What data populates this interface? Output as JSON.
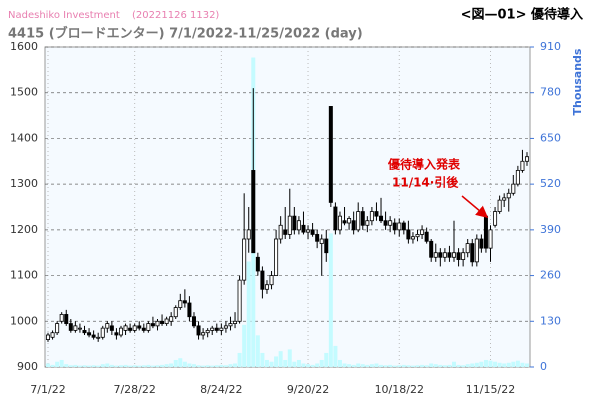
{
  "chart_data": {
    "type": "candlestick",
    "title": "Nadeshiko Investment",
    "timestamp": "(20221126 1132)",
    "figure_label": "<図—01> 優待導入",
    "subtitle": "4415 (ブロードエンター) 7/1/2022-11/25/2022 (day)",
    "y2label": "Thousands",
    "annotation": [
      "優待導入発表",
      "11/14·引後"
    ],
    "categories": [
      "7/1/22",
      null,
      null,
      null,
      null,
      null,
      null,
      null,
      null,
      null,
      null,
      null,
      null,
      null,
      null,
      null,
      null,
      null,
      null,
      "7/28/22",
      null,
      null,
      null,
      null,
      null,
      null,
      null,
      null,
      null,
      null,
      null,
      null,
      null,
      null,
      null,
      null,
      null,
      null,
      "8/24/22",
      null,
      null,
      null,
      null,
      null,
      null,
      null,
      null,
      null,
      null,
      null,
      null,
      null,
      null,
      null,
      null,
      null,
      null,
      "9/20/22",
      null,
      null,
      null,
      null,
      null,
      null,
      null,
      null,
      null,
      null,
      null,
      null,
      null,
      null,
      null,
      null,
      null,
      null,
      null,
      "10/18/22",
      null,
      null,
      null,
      null,
      null,
      null,
      null,
      null,
      null,
      null,
      null,
      null,
      null,
      null,
      null,
      null,
      null,
      null,
      null,
      "11/15/22",
      null,
      null,
      null,
      null,
      null,
      null,
      null,
      null
    ],
    "open": [
      960,
      965,
      975,
      1000,
      1015,
      995,
      980,
      985,
      980,
      975,
      970,
      965,
      965,
      985,
      990,
      975,
      970,
      980,
      985,
      980,
      990,
      985,
      980,
      995,
      990,
      1000,
      995,
      1000,
      1010,
      1030,
      1045,
      1040,
      1010,
      990,
      970,
      975,
      980,
      985,
      980,
      985,
      990,
      995,
      1000,
      1090,
      1180,
      1330,
      1140,
      1110,
      1070,
      1080,
      1100,
      1180,
      1200,
      1190,
      1230,
      1200,
      1210,
      1195,
      1200,
      1190,
      1170,
      1180,
      1470,
      1250,
      1200,
      1220,
      1215,
      1220,
      1200,
      1240,
      1210,
      1220,
      1240,
      1230,
      1220,
      1210,
      1215,
      1200,
      1215,
      1200,
      1180,
      1185,
      1190,
      1195,
      1175,
      1140,
      1150,
      1140,
      1150,
      1140,
      1150,
      1135,
      1150,
      1170,
      1130,
      1180,
      1230,
      1160,
      1210,
      1240,
      1265,
      1270,
      1280,
      1300,
      1330,
      1350
    ],
    "high": [
      975,
      980,
      1000,
      1020,
      1025,
      1005,
      1000,
      995,
      990,
      985,
      980,
      975,
      990,
      1000,
      1000,
      985,
      990,
      995,
      995,
      995,
      1000,
      995,
      1000,
      1010,
      1005,
      1015,
      1010,
      1020,
      1035,
      1060,
      1070,
      1055,
      1020,
      1000,
      985,
      985,
      990,
      995,
      995,
      1000,
      1010,
      1020,
      1100,
      1280,
      1250,
      1510,
      1150,
      1120,
      1090,
      1110,
      1200,
      1230,
      1250,
      1290,
      1250,
      1230,
      1240,
      1210,
      1215,
      1200,
      1190,
      1200,
      1470,
      1260,
      1240,
      1250,
      1230,
      1240,
      1260,
      1250,
      1230,
      1250,
      1260,
      1270,
      1240,
      1230,
      1225,
      1225,
      1220,
      1220,
      1195,
      1200,
      1210,
      1205,
      1180,
      1170,
      1160,
      1160,
      1165,
      1220,
      1160,
      1160,
      1180,
      1180,
      1190,
      1190,
      1230,
      1210,
      1250,
      1275,
      1280,
      1290,
      1320,
      1340,
      1375,
      1370
    ],
    "low": [
      955,
      960,
      970,
      995,
      990,
      975,
      975,
      975,
      970,
      965,
      960,
      955,
      960,
      975,
      970,
      960,
      965,
      970,
      975,
      975,
      980,
      975,
      975,
      985,
      980,
      990,
      990,
      990,
      1005,
      1025,
      1030,
      1000,
      985,
      960,
      960,
      965,
      970,
      975,
      970,
      975,
      980,
      985,
      995,
      1080,
      1150,
      1150,
      1100,
      1050,
      1060,
      1070,
      1100,
      1170,
      1180,
      1180,
      1190,
      1190,
      1190,
      1180,
      1185,
      1160,
      1100,
      1130,
      1250,
      1190,
      1190,
      1210,
      1200,
      1190,
      1195,
      1200,
      1195,
      1210,
      1220,
      1215,
      1200,
      1195,
      1190,
      1185,
      1190,
      1170,
      1170,
      1175,
      1180,
      1170,
      1130,
      1130,
      1120,
      1130,
      1130,
      1130,
      1120,
      1120,
      1140,
      1120,
      1120,
      1150,
      1150,
      1130,
      1205,
      1235,
      1250,
      1240,
      1275,
      1295,
      1325,
      1340
    ],
    "close": [
      970,
      975,
      995,
      1015,
      995,
      980,
      990,
      985,
      975,
      970,
      965,
      965,
      985,
      995,
      980,
      970,
      985,
      990,
      980,
      990,
      985,
      980,
      995,
      990,
      1000,
      995,
      1005,
      1010,
      1030,
      1045,
      1040,
      1010,
      990,
      970,
      975,
      980,
      985,
      980,
      985,
      990,
      995,
      1000,
      1090,
      1180,
      1200,
      1150,
      1110,
      1070,
      1080,
      1100,
      1180,
      1210,
      1190,
      1230,
      1200,
      1220,
      1195,
      1200,
      1190,
      1175,
      1180,
      1150,
      1260,
      1200,
      1230,
      1215,
      1225,
      1200,
      1240,
      1210,
      1220,
      1240,
      1230,
      1220,
      1210,
      1220,
      1200,
      1215,
      1200,
      1180,
      1185,
      1190,
      1200,
      1175,
      1140,
      1150,
      1140,
      1150,
      1140,
      1150,
      1135,
      1150,
      1170,
      1130,
      1180,
      1160,
      1160,
      1200,
      1240,
      1265,
      1270,
      1280,
      1300,
      1330,
      1350,
      1360
    ],
    "volume": [
      10,
      6,
      15,
      20,
      8,
      5,
      6,
      4,
      5,
      4,
      5,
      4,
      8,
      10,
      6,
      4,
      5,
      6,
      4,
      5,
      4,
      5,
      6,
      4,
      5,
      6,
      8,
      10,
      20,
      25,
      15,
      10,
      8,
      5,
      4,
      5,
      4,
      5,
      6,
      5,
      8,
      10,
      40,
      120,
      300,
      880,
      90,
      40,
      20,
      15,
      30,
      45,
      20,
      50,
      15,
      20,
      10,
      8,
      6,
      10,
      20,
      40,
      380,
      60,
      20,
      10,
      8,
      6,
      10,
      8,
      6,
      8,
      10,
      6,
      5,
      6,
      4,
      5,
      6,
      5,
      4,
      5,
      6,
      5,
      10,
      8,
      6,
      5,
      6,
      15,
      6,
      5,
      8,
      10,
      12,
      15,
      20,
      18,
      15,
      12,
      10,
      12,
      15,
      18,
      12,
      10
    ],
    "up_color": "#ffffff",
    "down_color": "#000000",
    "volume_color": "#c4fbff",
    "ylim": [
      900,
      1600
    ],
    "yticks": [
      900,
      1000,
      1100,
      1200,
      1300,
      1400,
      1500,
      1600
    ],
    "y2lim": [
      0,
      910
    ],
    "y2ticks": [
      0,
      130,
      260,
      390,
      520,
      650,
      780,
      910
    ],
    "grid": true
  }
}
